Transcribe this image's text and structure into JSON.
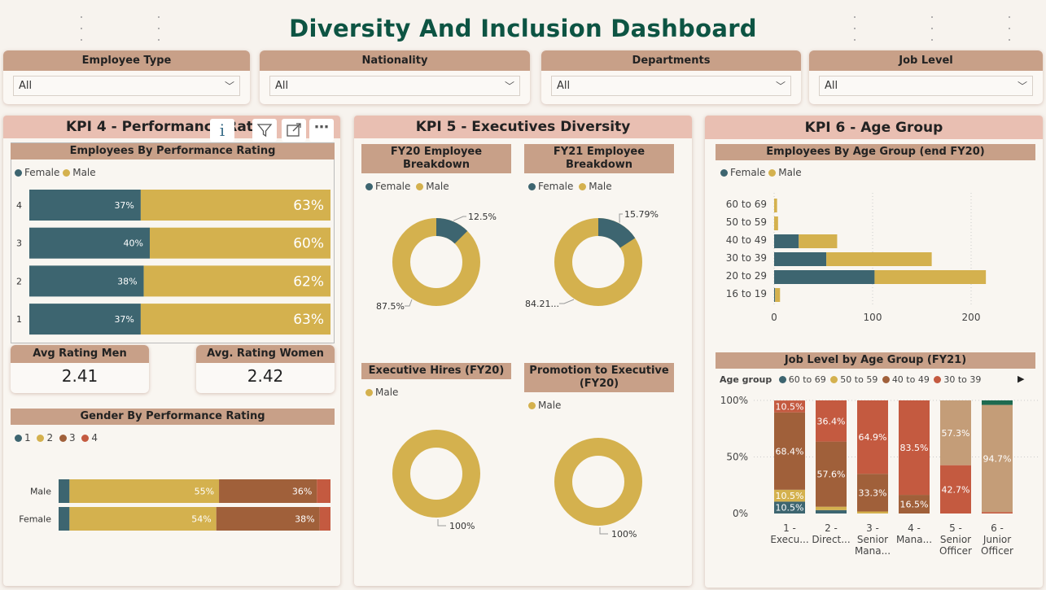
{
  "title": "Diversity And Inclusion Dashboard",
  "colors": {
    "female": "#3d6570",
    "male": "#d4b14e",
    "c60": "#3d6570",
    "c50": "#d4b14e",
    "c40": "#a0603a",
    "c30": "#c45a40",
    "c20": "#c49d78",
    "c16": "#1e6b50"
  },
  "slicers": [
    {
      "label": "Employee Type",
      "value": "All"
    },
    {
      "label": "Nationality",
      "value": "All"
    },
    {
      "label": "Departments",
      "value": "All"
    },
    {
      "label": "Job Level",
      "value": "All"
    }
  ],
  "kpi4": {
    "title": "KPI 4 - Performance Rating",
    "rating_chart": {
      "title": "Employees By Performance Rating",
      "legend": [
        "Female",
        "Male"
      ],
      "rows": [
        {
          "label": "4",
          "female": "37%",
          "male": "63%",
          "f": 37
        },
        {
          "label": "3",
          "female": "40%",
          "male": "60%",
          "f": 40
        },
        {
          "label": "2",
          "female": "38%",
          "male": "62%",
          "f": 38
        },
        {
          "label": "1",
          "female": "37%",
          "male": "63%",
          "f": 37
        }
      ]
    },
    "avg_men": {
      "label": "Avg Rating Men",
      "value": "2.41"
    },
    "avg_women": {
      "label": "Avg. Rating Women",
      "value": "2.42"
    },
    "gender_chart": {
      "title": "Gender By Performance Rating",
      "legend": [
        "1",
        "2",
        "3",
        "4"
      ],
      "rows": [
        {
          "label": "Male",
          "r1": 4,
          "r2": 55,
          "r3": 36,
          "r4": 5,
          "l2": "55%",
          "l3": "36%"
        },
        {
          "label": "Female",
          "r1": 4,
          "r2": 54,
          "r3": 38,
          "r4": 4,
          "l2": "54%",
          "l3": "38%"
        }
      ]
    },
    "toolbar_icons": [
      "info-icon",
      "filter-icon",
      "focus-mode-icon",
      "more-options-icon"
    ]
  },
  "kpi5": {
    "title": "KPI 5 - Executives Diversity",
    "fy20": {
      "title": "FY20 Employee Breakdown",
      "legend": [
        "Female",
        "Male"
      ],
      "female": 12.5,
      "female_label": "12.5%",
      "male_label": "87.5%"
    },
    "fy21": {
      "title": "FY21 Employee Breakdown",
      "legend": [
        "Female",
        "Male"
      ],
      "female": 15.79,
      "female_label": "15.79%",
      "male_label": "84.21..."
    },
    "hires": {
      "title": "Executive Hires (FY20)",
      "legend": [
        "Male"
      ],
      "label": "100%"
    },
    "promotion": {
      "title": "Promotion to Executive (FY20)",
      "legend": [
        "Male"
      ],
      "label": "100%"
    }
  },
  "kpi6": {
    "title": "KPI 6 - Age Group",
    "age_chart": {
      "title": "Employees By Age Group (end FY20)",
      "legend": [
        "Female",
        "Male"
      ],
      "categories": [
        "60 to 69",
        "50 to 59",
        "40 to 49",
        "30 to 39",
        "20 to 29",
        "16 to 19"
      ],
      "female": [
        0,
        0,
        25,
        53,
        102,
        1
      ],
      "male": [
        3,
        4,
        39,
        107,
        113,
        5
      ],
      "xticks": [
        "0",
        "100",
        "200"
      ]
    },
    "job_chart": {
      "title": "Job Level by Age Group (FY21)",
      "legend_title": "Age group",
      "legend": [
        "60 to 69",
        "50 to 59",
        "40 to 49",
        "30 to 39"
      ],
      "yticks": [
        "100%",
        "50%",
        "0%"
      ],
      "columns": [
        {
          "label": [
            "1 -",
            "Execu..."
          ],
          "segs": [
            10.5,
            10.5,
            68.4,
            10.5,
            0,
            0
          ],
          "labels": [
            "10.5%",
            "10.5%",
            "68.4%",
            "10.5%"
          ]
        },
        {
          "label": [
            "2 -",
            "Direct..."
          ],
          "segs": [
            3,
            3,
            57.6,
            36.4,
            0,
            0
          ],
          "labels": [
            "",
            "",
            "57.6%",
            "36.4%"
          ]
        },
        {
          "label": [
            "3 -",
            "Senior",
            "Mana..."
          ],
          "segs": [
            0,
            1.8,
            33.3,
            64.9,
            0,
            0
          ],
          "labels": [
            "",
            "",
            "33.3%",
            "64.9%"
          ]
        },
        {
          "label": [
            "4 -",
            "Mana..."
          ],
          "segs": [
            0,
            0,
            16.5,
            83.5,
            0,
            0
          ],
          "labels": [
            "",
            "",
            "16.5%",
            "83.5%"
          ]
        },
        {
          "label": [
            "5 -",
            "Senior",
            "Officer"
          ],
          "segs": [
            0,
            0,
            0,
            42.7,
            57.3,
            0
          ],
          "labels": [
            "",
            "",
            "",
            "42.7%",
            "57.3%"
          ]
        },
        {
          "label": [
            "6 -",
            "Junior",
            "Officer"
          ],
          "segs": [
            0,
            0,
            0,
            1.3,
            94.7,
            4
          ],
          "labels": [
            "",
            "",
            "",
            "",
            "94.7%"
          ]
        }
      ]
    }
  }
}
